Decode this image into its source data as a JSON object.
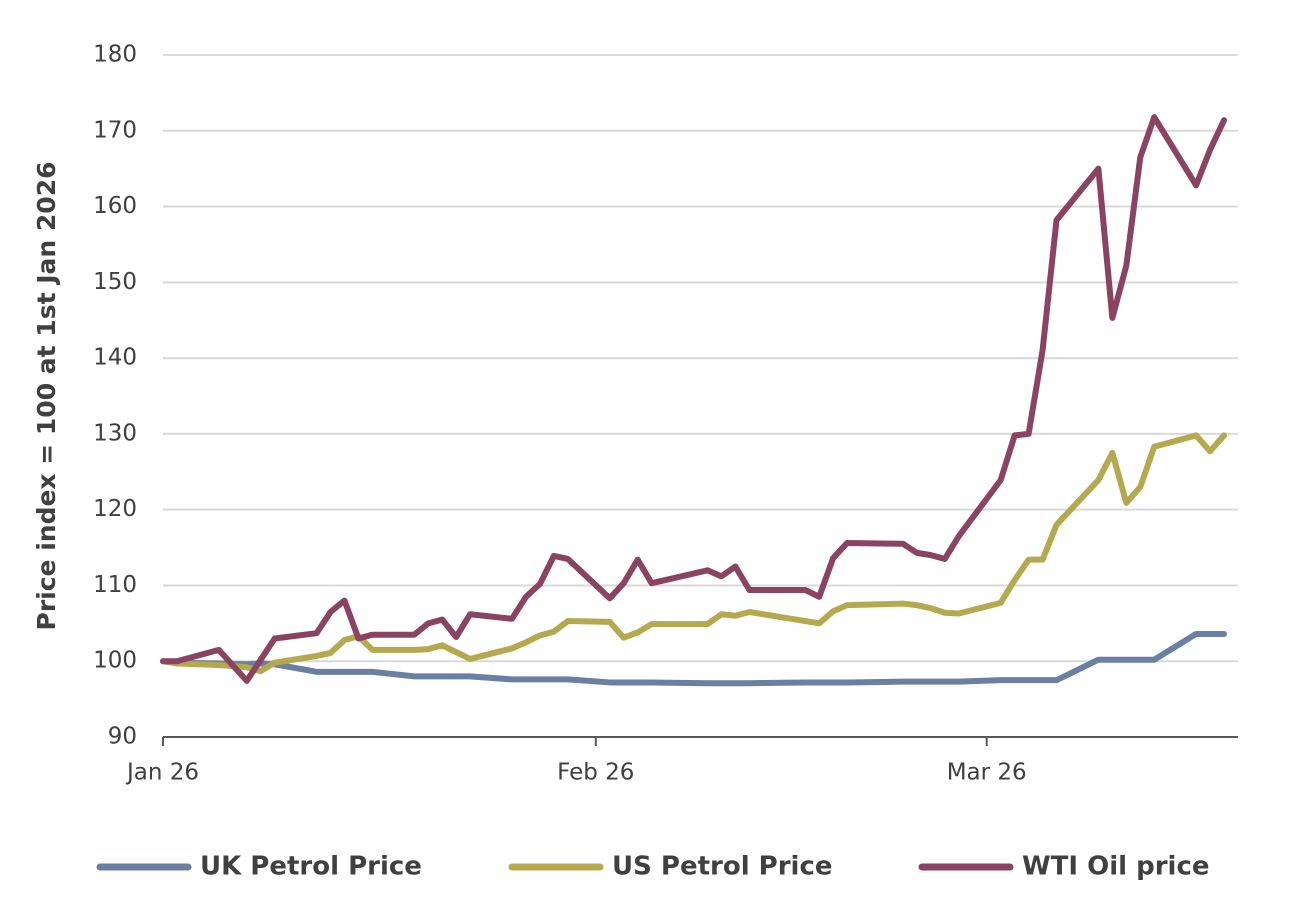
{
  "chart_data": {
    "type": "line",
    "y_label": "Price index = 100 at 1st Jan 2026",
    "x": [
      0,
      1,
      4,
      6,
      7,
      8,
      11,
      12,
      13,
      14,
      15,
      18,
      19,
      20,
      21,
      22,
      25,
      26,
      27,
      28,
      29,
      32,
      33,
      34,
      35,
      39,
      40,
      41,
      42,
      46,
      47,
      48,
      49,
      53,
      54,
      55,
      56,
      57,
      60,
      61,
      62,
      63,
      64,
      67,
      68,
      69,
      70,
      71,
      74,
      75,
      76
    ],
    "xlim": [
      0,
      77
    ],
    "xticks": [
      {
        "value": 0,
        "label": "Jan 26"
      },
      {
        "value": 31,
        "label": "Feb 26"
      },
      {
        "value": 59,
        "label": "Mar 26"
      }
    ],
    "ylim": [
      90,
      180
    ],
    "yticks": [
      90,
      100,
      110,
      120,
      130,
      140,
      150,
      160,
      170,
      180
    ],
    "grid": true,
    "legend": "bottom",
    "series": [
      {
        "name": "UK Petrol Price",
        "color": "#6b7fa3",
        "values": [
          100,
          99.8,
          99.7,
          99.6,
          99.7,
          99.6,
          98.6,
          98.6,
          98.6,
          98.6,
          98.6,
          98.0,
          98.0,
          98.0,
          98.0,
          98.0,
          97.6,
          97.6,
          97.6,
          97.6,
          97.6,
          97.2,
          97.2,
          97.2,
          97.2,
          97.1,
          97.1,
          97.1,
          97.1,
          97.2,
          97.2,
          97.2,
          97.2,
          97.3,
          97.3,
          97.3,
          97.3,
          97.3,
          97.5,
          97.5,
          97.5,
          97.5,
          97.5,
          100.2,
          100.2,
          100.2,
          100.2,
          100.2,
          103.6,
          103.6,
          103.6
        ]
      },
      {
        "name": "US Petrol Price",
        "color": "#b5a94f",
        "values": [
          100,
          99.7,
          99.5,
          99.2,
          98.7,
          99.8,
          100.7,
          101.1,
          102.8,
          103.3,
          101.5,
          101.5,
          101.6,
          102.1,
          101.2,
          100.3,
          101.7,
          102.5,
          103.4,
          103.9,
          105.3,
          105.2,
          103.1,
          103.8,
          104.9,
          104.9,
          106.2,
          106,
          106.5,
          105.3,
          105,
          106.6,
          107.4,
          107.6,
          107.4,
          107,
          106.4,
          106.3,
          107.7,
          110.7,
          113.4,
          113.4,
          118,
          123.9,
          127.5,
          120.9,
          123,
          128.3,
          129.8,
          127.7,
          129.8
        ]
      },
      {
        "name": "WTI Oil price",
        "color": "#8b4362",
        "values": [
          100,
          100,
          101.5,
          97.4,
          100.2,
          103,
          103.7,
          106.5,
          108,
          103,
          103.5,
          103.5,
          105,
          105.5,
          103.2,
          106.2,
          105.6,
          108.5,
          110.2,
          113.9,
          113.5,
          108.3,
          110.3,
          113.4,
          110.3,
          112,
          111.2,
          112.5,
          109.4,
          109.4,
          108.5,
          113.6,
          115.6,
          115.5,
          114.3,
          114,
          113.5,
          116.5,
          123.9,
          129.8,
          130,
          141,
          158.2,
          165,
          145.3,
          152.2,
          166.5,
          171.8,
          162.8,
          167.5,
          171.4
        ]
      }
    ]
  }
}
